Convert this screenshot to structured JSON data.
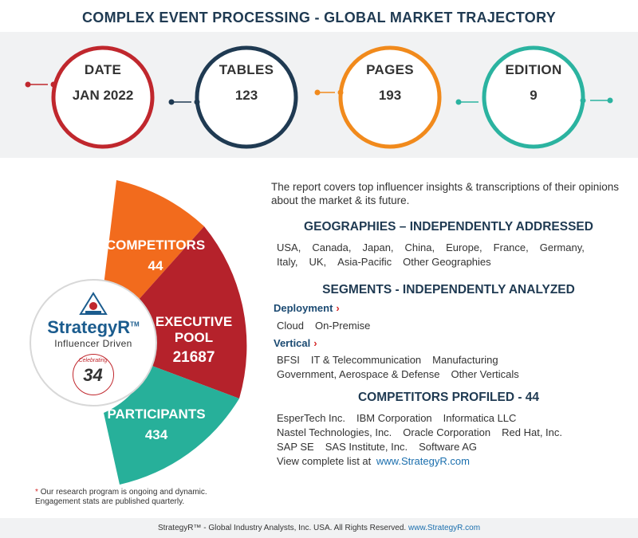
{
  "title": "COMPLEX EVENT PROCESSING - GLOBAL MARKET TRAJECTORY",
  "stats": [
    {
      "label": "DATE",
      "value": "JAN 2022",
      "color": "#c0272d"
    },
    {
      "label": "TABLES",
      "value": "123",
      "color": "#1f3a52"
    },
    {
      "label": "PAGES",
      "value": "193",
      "color": "#f18a1c"
    },
    {
      "label": "EDITION",
      "value": "9",
      "color": "#2bb3a0"
    }
  ],
  "segments": {
    "competitors": {
      "label": "COMPETITORS",
      "value": "44",
      "color": "#f26b1d"
    },
    "executive": {
      "label_line1": "EXECUTIVE",
      "label_line2": "POOL",
      "value": "21687",
      "color": "#b5222b"
    },
    "participants": {
      "label": "PARTICIPANTS",
      "value": "434",
      "color": "#27b09a"
    }
  },
  "logo": {
    "name": "StrategyR",
    "tm": "TM",
    "tagline": "Influencer Driven",
    "badge_number": "34",
    "badge_text": "Celebrating"
  },
  "footnote": {
    "line1": "Our research program is ongoing and dynamic.",
    "line2": "Engagement stats are published quarterly.",
    "star": "*"
  },
  "intro": "The report covers top influencer insights & transcriptions of their opinions about the market & its future.",
  "geographies": {
    "heading": "GEOGRAPHIES – INDEPENDENTLY ADDRESSED",
    "row1": [
      "USA,",
      "Canada,",
      "Japan,",
      "China,",
      "Europe,",
      "France,",
      "Germany,"
    ],
    "row2": [
      "Italy,",
      "UK,",
      "Asia-Pacific",
      "Other Geographies"
    ]
  },
  "segments_section": {
    "heading": "SEGMENTS - INDEPENDENTLY ANALYZED",
    "deployment": {
      "label": "Deployment",
      "items": [
        "Cloud",
        "On-Premise"
      ]
    },
    "vertical": {
      "label": "Vertical",
      "row1": [
        "BFSI",
        "IT & Telecommunication",
        "Manufacturing"
      ],
      "row2": [
        "Government, Aerospace & Defense",
        "Other Verticals"
      ]
    }
  },
  "competitors_profiled": {
    "heading": "COMPETITORS PROFILED - 44",
    "row1": [
      "EsperTech Inc.",
      "IBM Corporation",
      "Informatica LLC"
    ],
    "row2": [
      "Nastel Technologies, Inc.",
      "Oracle Corporation",
      "Red Hat, Inc."
    ],
    "row3": [
      "SAP SE",
      "SAS Institute, Inc.",
      "Software AG"
    ],
    "view_text": "View complete list at",
    "view_link": "www.StrategyR.com"
  },
  "footer": {
    "text": "StrategyR™ - Global Industry Analysts, Inc. USA. All Rights Reserved.",
    "link": "www.StrategyR.com"
  }
}
